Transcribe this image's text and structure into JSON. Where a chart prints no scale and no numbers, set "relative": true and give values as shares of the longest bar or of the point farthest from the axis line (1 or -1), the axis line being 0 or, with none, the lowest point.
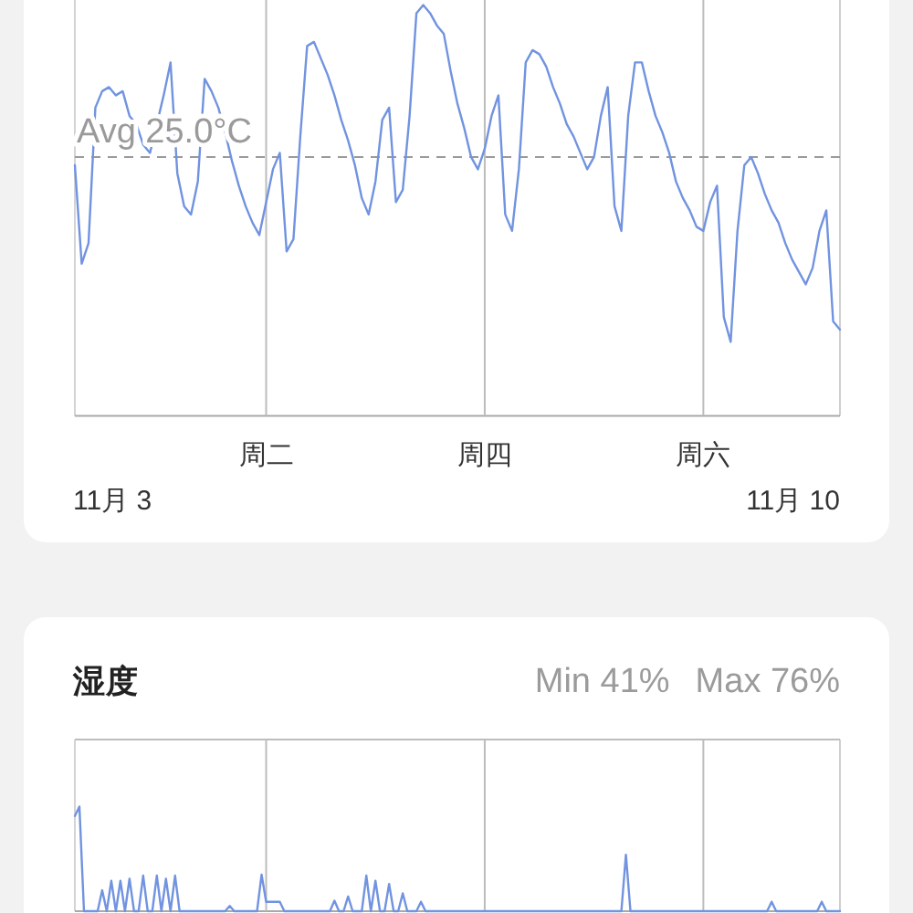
{
  "chart_data": [
    {
      "type": "line",
      "relative": true,
      "color": "#7193e0",
      "grid": "x",
      "ref_lines": [
        {
          "axis": "y",
          "value": 0.63,
          "label": "Avg 25.0°C",
          "line_style": "dashed",
          "color": "#9a9a9a"
        }
      ],
      "annotations": [
        "11月 3",
        "11月 10"
      ],
      "categories": [
        null,
        null,
        null,
        null,
        null,
        null,
        null,
        null,
        null,
        null,
        null,
        null,
        null,
        null,
        null,
        null,
        null,
        null,
        null,
        null,
        null,
        null,
        null,
        null,
        null,
        null,
        null,
        null,
        "周二",
        null,
        null,
        null,
        null,
        null,
        null,
        null,
        null,
        null,
        null,
        null,
        null,
        null,
        null,
        null,
        null,
        null,
        null,
        null,
        null,
        null,
        null,
        null,
        null,
        null,
        null,
        null,
        null,
        null,
        null,
        null,
        "周四",
        null,
        null,
        null,
        null,
        null,
        null,
        null,
        null,
        null,
        null,
        null,
        null,
        null,
        null,
        null,
        null,
        null,
        null,
        null,
        null,
        null,
        null,
        null,
        null,
        null,
        null,
        null,
        null,
        null,
        null,
        null,
        "周六",
        null,
        null,
        null,
        null,
        null,
        null,
        null,
        null,
        null,
        null,
        null,
        null,
        null,
        null,
        null,
        null,
        null,
        null,
        null,
        null
      ],
      "values": [
        0.61,
        0.37,
        0.42,
        0.75,
        0.79,
        0.8,
        0.78,
        0.79,
        0.73,
        0.71,
        0.66,
        0.64,
        0.71,
        0.78,
        0.86,
        0.59,
        0.51,
        0.49,
        0.57,
        0.82,
        0.79,
        0.75,
        0.69,
        0.62,
        0.56,
        0.51,
        0.47,
        0.44,
        0.52,
        0.6,
        0.64,
        0.4,
        0.43,
        0.68,
        0.9,
        0.91,
        0.87,
        0.83,
        0.78,
        0.72,
        0.67,
        0.61,
        0.53,
        0.49,
        0.57,
        0.72,
        0.75,
        0.52,
        0.55,
        0.73,
        0.98,
        1.0,
        0.98,
        0.95,
        0.93,
        0.84,
        0.76,
        0.7,
        0.63,
        0.6,
        0.65,
        0.73,
        0.78,
        0.49,
        0.45,
        0.6,
        0.86,
        0.89,
        0.88,
        0.85,
        0.8,
        0.76,
        0.71,
        0.68,
        0.64,
        0.6,
        0.63,
        0.73,
        0.8,
        0.51,
        0.45,
        0.73,
        0.86,
        0.86,
        0.79,
        0.73,
        0.69,
        0.64,
        0.57,
        0.53,
        0.5,
        0.46,
        0.45,
        0.52,
        0.56,
        0.24,
        0.18,
        0.45,
        0.61,
        0.63,
        0.59,
        0.54,
        0.5,
        0.47,
        0.42,
        0.38,
        0.35,
        0.32,
        0.36,
        0.45,
        0.5,
        0.23,
        0.21
      ]
    },
    {
      "type": "line",
      "relative": true,
      "title": "湿度",
      "annotations": [
        "Min 41%",
        "Max 76%"
      ],
      "color": "#7193e0",
      "grid": "x",
      "categories": [
        null,
        null,
        null,
        null,
        null,
        null,
        null,
        null,
        null,
        null,
        null,
        null,
        null,
        null,
        null,
        null,
        null,
        null,
        null,
        null,
        null,
        null,
        null,
        null,
        null,
        null,
        null,
        null,
        null,
        null,
        null,
        null,
        null,
        null,
        null,
        null,
        null,
        null,
        null,
        null,
        null,
        null,
        null,
        null,
        null,
        null,
        null,
        null,
        null,
        null,
        null,
        null,
        null,
        null,
        null,
        null,
        null,
        null,
        null,
        null,
        null,
        null,
        null,
        null,
        null,
        null,
        null,
        null,
        null,
        null,
        null,
        null,
        null,
        null,
        null,
        null,
        null,
        null,
        null,
        null,
        null,
        null,
        null,
        null,
        null,
        null,
        null,
        null,
        null,
        null,
        null,
        null,
        null,
        null,
        null,
        null,
        null,
        null,
        null,
        null,
        null,
        null,
        null,
        null,
        null,
        null,
        null,
        null,
        null,
        null,
        null,
        null,
        null,
        null,
        null,
        null,
        null,
        null,
        null,
        null,
        null,
        null,
        null,
        null,
        null,
        null,
        null,
        null,
        null,
        null,
        null,
        null,
        null,
        null,
        null,
        null,
        null,
        null,
        null,
        null,
        null,
        null,
        null,
        null,
        null,
        null,
        null,
        null,
        null,
        null,
        null,
        null,
        null,
        null,
        null,
        null,
        null,
        null,
        null,
        null,
        null,
        null,
        null,
        null,
        null,
        null,
        null,
        null,
        null
      ],
      "values": [
        0.91,
        1,
        0,
        0,
        0,
        0,
        0.2,
        0,
        0.29,
        0,
        0.29,
        0,
        0.31,
        0,
        0,
        0.34,
        0,
        0,
        0.34,
        0,
        0.31,
        0,
        0.34,
        0,
        0,
        0,
        0,
        0,
        0,
        0,
        0,
        0,
        0,
        0,
        0.05,
        0,
        0,
        0,
        0,
        0,
        0,
        0.35,
        0.09,
        0.09,
        0.09,
        0.09,
        0,
        0,
        0,
        0,
        0,
        0,
        0,
        0,
        0,
        0,
        0,
        0.1,
        0,
        0,
        0.14,
        0,
        0,
        0,
        0.34,
        0,
        0.29,
        0,
        0,
        0.26,
        0,
        0,
        0.17,
        0,
        0,
        0,
        0.09,
        0,
        0,
        0,
        0,
        0,
        0,
        0,
        0,
        0,
        0,
        0,
        0,
        0,
        0,
        0,
        0,
        0,
        0,
        0,
        0,
        0,
        0,
        0,
        0,
        0,
        0,
        0,
        0,
        0,
        0,
        0,
        0,
        0,
        0,
        0,
        0,
        0,
        0,
        0,
        0,
        0,
        0,
        0,
        0,
        0.54,
        0,
        0,
        0,
        0,
        0,
        0,
        0,
        0,
        0,
        0,
        0,
        0,
        0,
        0,
        0,
        0,
        0,
        0,
        0,
        0,
        0,
        0,
        0,
        0,
        0,
        0,
        0,
        0,
        0,
        0,
        0,
        0.09,
        0,
        0,
        0,
        0,
        0,
        0,
        0,
        0,
        0,
        0,
        0.09,
        0,
        0,
        0,
        0
      ]
    }
  ]
}
